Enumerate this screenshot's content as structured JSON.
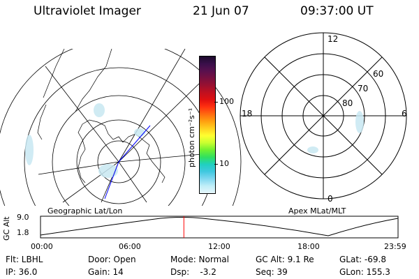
{
  "header": {
    "instrument": "Ultraviolet Imager",
    "date": "21 Jun 07",
    "time": "09:37:00 UT"
  },
  "geo_panel": {
    "caption": "Geographic Lat/Lon"
  },
  "apex_panel": {
    "caption": "Apex MLat/MLT",
    "mlt_labels": {
      "top": "12",
      "left": "18",
      "right": "6",
      "bottom": "0"
    },
    "lat_labels": [
      "60",
      "70",
      "80"
    ]
  },
  "colorbar": {
    "unit_label": "photon cm⁻²s⁻¹",
    "tick_labels": [
      "100",
      "10"
    ],
    "colors": [
      "#1c0a2c",
      "#3a0f4a",
      "#58104e",
      "#781040",
      "#9a1030",
      "#c01020",
      "#e01010",
      "#ff3010",
      "#ff6a10",
      "#ffa010",
      "#ffd020",
      "#ffff30",
      "#c8ff30",
      "#70f030",
      "#30e060",
      "#20d0c0",
      "#40c8e0",
      "#80d8f0",
      "#c0eef8",
      "#e6f6fb"
    ]
  },
  "altitude_panel": {
    "axis_label": "GC Alt",
    "y_ticks": [
      "9.0",
      "1.8"
    ],
    "x_ticks": [
      "00:00",
      "06:00",
      "12:00",
      "18:00",
      "23:59"
    ],
    "cursor_time": "09:37",
    "cursor_color": "#ff0000"
  },
  "footer": {
    "flt": "Flt: LBHL",
    "ip": "IP: 36.0",
    "door": "Door: Open",
    "gain": "Gain: 14",
    "mode": "Mode: Normal",
    "dsp": "Dsp:    -3.2",
    "gc_alt": "GC Alt: 9.1 Re",
    "seq": "Seq: 39",
    "glat": "GLat: -69.8",
    "glon": "GLon: 155.3"
  }
}
